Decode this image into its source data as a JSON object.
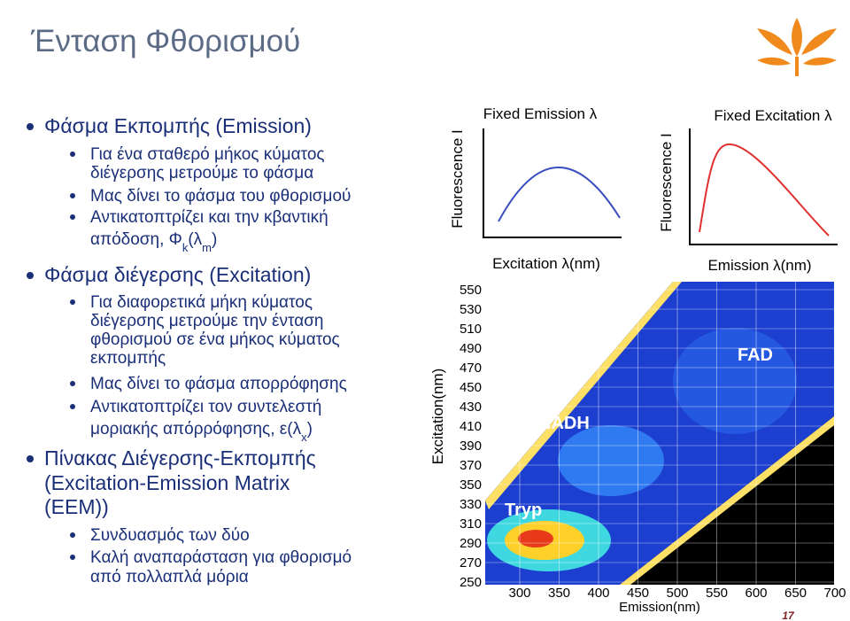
{
  "title": "Ένταση Φθορισμού",
  "bullets": [
    {
      "lines": [
        "Φάσμα Εκπομπής (Emission)"
      ],
      "items": [
        {
          "lines": [
            "Για ένα σταθερό μήκος κύματος",
            "διέγερσης μετρούμε το φάσμα"
          ]
        },
        {
          "lines": [
            "Μας δίνει το φάσμα του φθορισμού"
          ]
        },
        {
          "lines": [
            "Αντικατοπτρίζει και την κβαντική",
            [
              "απόδοση, Φ",
              "k",
              "(λ",
              "m",
              ")"
            ]
          ]
        }
      ]
    },
    {
      "lines": [
        "Φάσμα διέγερσης (Excitation)"
      ],
      "items": [
        {
          "lines": [
            "Για διαφορετικά μήκη κύματος",
            "διέγερσης μετρούμε την ένταση",
            "φθορισμού σε ένα μήκος κύματος",
            "εκπομπής"
          ]
        },
        {
          "lines": [
            "Μας δίνει το φάσμα απορρόφησης"
          ]
        },
        {
          "lines": [
            "Αντικατοπτρίζει τον συντελεστή",
            [
              "μοριακής απόρρόφησης, ε(λ",
              "x",
              ")"
            ]
          ]
        }
      ]
    },
    {
      "lines": [
        "Πίνακας Διέγερσης-Εκπομπής",
        "(Excitation-Emission Matrix",
        "(EEM))"
      ],
      "items": [
        {
          "lines": [
            "Συνδυασμός των δύο"
          ]
        },
        {
          "lines": [
            "Καλή αναπαράσταση για φθορισμό",
            "από πολλαπλά μόρια"
          ]
        }
      ]
    }
  ],
  "figures": {
    "emission_curve": {
      "title": "Fixed Emission λ",
      "ylabel": "Fluorescence I",
      "xlabel": "Excitation λ(nm)",
      "color": "#3a4fc0"
    },
    "excitation_curve": {
      "title": "Fixed Excitation λ",
      "ylabel": "Fluorescence I",
      "xlabel": "Emission λ(nm)",
      "color": "#e03030"
    },
    "eem": {
      "ylabel": "Excitation(nm)",
      "xlabel": "Emission(nm)",
      "yticks": [
        550,
        530,
        510,
        490,
        470,
        450,
        430,
        410,
        390,
        370,
        350,
        330,
        310,
        290,
        270,
        250
      ],
      "xticks": [
        300,
        350,
        400,
        450,
        500,
        550,
        600,
        650,
        700
      ],
      "annotations": [
        "NADH",
        "FAD",
        "Tryp"
      ]
    }
  },
  "page_number": "17"
}
